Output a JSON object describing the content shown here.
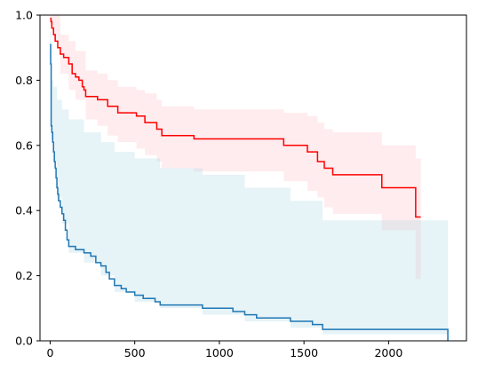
{
  "chart_data": {
    "type": "line",
    "title": "",
    "xlabel": "",
    "ylabel": "",
    "xlim": [
      -60,
      2460
    ],
    "ylim": [
      0,
      1
    ],
    "grid": false,
    "legend": "none",
    "x_ticks": [
      0,
      500,
      1000,
      1500,
      2000
    ],
    "y_ticks": [
      0.0,
      0.2,
      0.4,
      0.6,
      0.8,
      1.0
    ],
    "x_tick_labels": [
      "0",
      "500",
      "1000",
      "1500",
      "2000"
    ],
    "y_tick_labels": [
      "0.0",
      "0.2",
      "0.4",
      "0.6",
      "0.8",
      "1.0"
    ],
    "series": [
      {
        "color": "#ff0000",
        "band_color": "#ffc0c8",
        "steps": [
          [
            0,
            0.99
          ],
          [
            5,
            0.98
          ],
          [
            10,
            0.96
          ],
          [
            20,
            0.94
          ],
          [
            30,
            0.92
          ],
          [
            45,
            0.9
          ],
          [
            60,
            0.88
          ],
          [
            80,
            0.87
          ],
          [
            110,
            0.85
          ],
          [
            130,
            0.82
          ],
          [
            150,
            0.81
          ],
          [
            170,
            0.8
          ],
          [
            190,
            0.78
          ],
          [
            200,
            0.77
          ],
          [
            210,
            0.75
          ],
          [
            280,
            0.74
          ],
          [
            340,
            0.72
          ],
          [
            400,
            0.7
          ],
          [
            510,
            0.69
          ],
          [
            560,
            0.67
          ],
          [
            630,
            0.65
          ],
          [
            660,
            0.63
          ],
          [
            850,
            0.62
          ],
          [
            1380,
            0.6
          ],
          [
            1520,
            0.58
          ],
          [
            1580,
            0.55
          ],
          [
            1620,
            0.53
          ],
          [
            1670,
            0.51
          ],
          [
            1960,
            0.47
          ],
          [
            2160,
            0.38
          ],
          [
            2190,
            0.38
          ]
        ],
        "band": [
          [
            0,
            0.97,
            1.0
          ],
          [
            20,
            0.92,
            1.0
          ],
          [
            60,
            0.82,
            0.94
          ],
          [
            110,
            0.77,
            0.92
          ],
          [
            150,
            0.74,
            0.89
          ],
          [
            210,
            0.68,
            0.83
          ],
          [
            280,
            0.66,
            0.82
          ],
          [
            340,
            0.63,
            0.8
          ],
          [
            400,
            0.61,
            0.78
          ],
          [
            510,
            0.59,
            0.77
          ],
          [
            560,
            0.57,
            0.76
          ],
          [
            630,
            0.55,
            0.74
          ],
          [
            660,
            0.53,
            0.72
          ],
          [
            850,
            0.52,
            0.71
          ],
          [
            1380,
            0.49,
            0.7
          ],
          [
            1520,
            0.46,
            0.69
          ],
          [
            1580,
            0.44,
            0.67
          ],
          [
            1620,
            0.41,
            0.65
          ],
          [
            1670,
            0.39,
            0.64
          ],
          [
            1960,
            0.34,
            0.6
          ],
          [
            2160,
            0.19,
            0.56
          ],
          [
            2190,
            0.19,
            0.56
          ]
        ]
      },
      {
        "color": "#1f77b4",
        "band_color": "#add8e6",
        "steps": [
          [
            0,
            0.91
          ],
          [
            3,
            0.85
          ],
          [
            6,
            0.66
          ],
          [
            10,
            0.64
          ],
          [
            15,
            0.61
          ],
          [
            20,
            0.58
          ],
          [
            25,
            0.55
          ],
          [
            30,
            0.53
          ],
          [
            35,
            0.5
          ],
          [
            40,
            0.47
          ],
          [
            45,
            0.45
          ],
          [
            50,
            0.43
          ],
          [
            60,
            0.41
          ],
          [
            70,
            0.39
          ],
          [
            80,
            0.37
          ],
          [
            90,
            0.34
          ],
          [
            100,
            0.31
          ],
          [
            110,
            0.29
          ],
          [
            150,
            0.28
          ],
          [
            200,
            0.27
          ],
          [
            240,
            0.26
          ],
          [
            270,
            0.24
          ],
          [
            300,
            0.23
          ],
          [
            330,
            0.21
          ],
          [
            350,
            0.19
          ],
          [
            380,
            0.17
          ],
          [
            420,
            0.16
          ],
          [
            450,
            0.15
          ],
          [
            500,
            0.14
          ],
          [
            550,
            0.13
          ],
          [
            620,
            0.12
          ],
          [
            650,
            0.11
          ],
          [
            900,
            0.1
          ],
          [
            1080,
            0.09
          ],
          [
            1150,
            0.08
          ],
          [
            1220,
            0.07
          ],
          [
            1420,
            0.06
          ],
          [
            1550,
            0.05
          ],
          [
            1610,
            0.035
          ],
          [
            2350,
            0.035
          ],
          [
            2350,
            0.0
          ]
        ],
        "band": [
          [
            0,
            0.85,
            0.95
          ],
          [
            6,
            0.62,
            0.8
          ],
          [
            20,
            0.55,
            0.78
          ],
          [
            40,
            0.44,
            0.74
          ],
          [
            70,
            0.36,
            0.71
          ],
          [
            110,
            0.27,
            0.68
          ],
          [
            200,
            0.24,
            0.64
          ],
          [
            300,
            0.2,
            0.61
          ],
          [
            380,
            0.15,
            0.58
          ],
          [
            500,
            0.12,
            0.56
          ],
          [
            650,
            0.1,
            0.53
          ],
          [
            900,
            0.08,
            0.51
          ],
          [
            1150,
            0.06,
            0.47
          ],
          [
            1420,
            0.04,
            0.43
          ],
          [
            1610,
            0.02,
            0.37
          ],
          [
            2350,
            0.0,
            0.37
          ]
        ]
      }
    ]
  }
}
